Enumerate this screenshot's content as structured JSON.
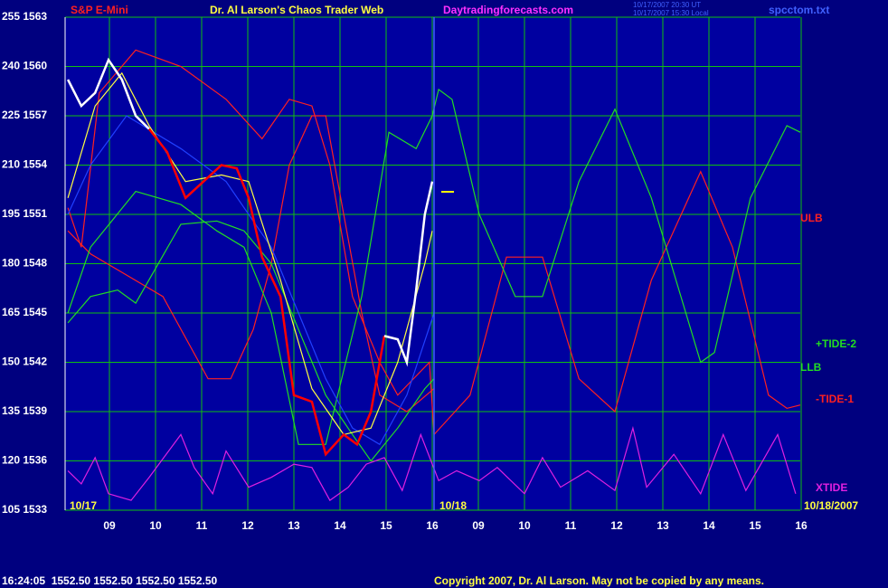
{
  "chart_data": {
    "type": "line",
    "header": {
      "instrument": "S&P E-Mini",
      "title": "Dr. Al Larson's Chaos Trader Web",
      "site": "Daytradingforecasts.com",
      "time_ut": "10/17/2007 20:30 UT",
      "time_local": "10/17/2007 15:30 Local",
      "file": "spcctom.txt"
    },
    "date_labels": {
      "start": "10/17",
      "next": "10/18",
      "end": "10/18/2007"
    },
    "footer": {
      "quote": "16:24:05  1552.50 1552.50 1552.50 1552.50",
      "copyright": "Copyright 2007, Dr. Al Larson. May not be copied by any means."
    },
    "grid": true,
    "xlim": [
      0,
      16
    ],
    "xticks": [
      {
        "value": 1,
        "label": "09"
      },
      {
        "value": 2,
        "label": "10"
      },
      {
        "value": 3,
        "label": "11"
      },
      {
        "value": 4,
        "label": "12"
      },
      {
        "value": 5,
        "label": "13"
      },
      {
        "value": 6,
        "label": "14"
      },
      {
        "value": 7,
        "label": "15"
      },
      {
        "value": 8,
        "label": "16"
      },
      {
        "value": 9,
        "label": "09"
      },
      {
        "value": 10,
        "label": "10"
      },
      {
        "value": 11,
        "label": "11"
      },
      {
        "value": 12,
        "label": "12"
      },
      {
        "value": 13,
        "label": "13"
      },
      {
        "value": 14,
        "label": "14"
      },
      {
        "value": 15,
        "label": "15"
      },
      {
        "value": 16,
        "label": "16"
      }
    ],
    "ylim": [
      105,
      255
    ],
    "yticks": [
      {
        "value": 255,
        "label": "255 1563"
      },
      {
        "value": 240,
        "label": "240 1560"
      },
      {
        "value": 225,
        "label": "225 1557"
      },
      {
        "value": 210,
        "label": "210 1554"
      },
      {
        "value": 195,
        "label": "195 1551"
      },
      {
        "value": 180,
        "label": "180 1548"
      },
      {
        "value": 165,
        "label": "165 1545"
      },
      {
        "value": 150,
        "label": "150 1542"
      },
      {
        "value": 135,
        "label": "135 1539"
      },
      {
        "value": 120,
        "label": "120 1536"
      },
      {
        "value": 105,
        "label": "105 1533"
      }
    ],
    "series": [
      {
        "color": "#ff2020",
        "x": [
          0.1,
          0.39,
          0.78,
          1.57,
          2.55,
          3.53,
          4.31,
          4.9,
          5.39,
          5.78,
          6.27,
          6.86,
          7.25,
          7.94,
          8.04
        ],
        "values": [
          197,
          185,
          232,
          245,
          240,
          230,
          218,
          230,
          228,
          210,
          170,
          150,
          140,
          150,
          128
        ]
      },
      {
        "name": "ULB",
        "color": "#ff2020",
        "x": [
          0.1,
          0.59,
          2.16,
          3.14,
          3.63,
          4.12,
          4.51,
          4.9,
          5.39,
          5.69,
          6.08,
          6.47,
          6.86,
          7.45,
          8.04
        ],
        "values": [
          190,
          183,
          170,
          145,
          145,
          160,
          180,
          210,
          225,
          225,
          195,
          165,
          140,
          135,
          142
        ]
      },
      {
        "name": "-TIDE-1",
        "color": "#ff2020",
        "x": [
          8.04,
          8.82,
          9.61,
          10.39,
          11.18,
          11.96,
          12.75,
          13.82,
          14.51,
          15.29,
          15.69,
          15.98
        ],
        "values": [
          128,
          140,
          182,
          182,
          145,
          135,
          175,
          208,
          185,
          140,
          136,
          137
        ]
      },
      {
        "name": "+TIDE-2",
        "color": "#22dd22",
        "x": [
          0.1,
          0.59,
          1.57,
          2.55,
          3.33,
          3.92,
          4.51,
          5.1,
          5.69,
          6.47,
          7.06,
          7.65,
          8.0,
          8.14,
          8.43,
          9.02,
          9.8,
          10.39,
          11.18,
          11.96,
          12.75,
          13.82,
          14.12,
          14.9,
          15.69,
          15.98
        ],
        "values": [
          165,
          185,
          202,
          198,
          190,
          185,
          165,
          125,
          125,
          170,
          220,
          215,
          225,
          233,
          230,
          195,
          170,
          170,
          205,
          227,
          200,
          150,
          153,
          200,
          222,
          220
        ]
      },
      {
        "name": "LLB",
        "color": "#22dd22",
        "x": [
          0.1,
          0.59,
          1.18,
          1.57,
          2.55,
          3.33,
          3.92,
          4.51,
          5.1,
          5.69,
          6.27,
          6.67,
          7.25,
          7.84,
          8.04
        ],
        "values": [
          162,
          170,
          172,
          168,
          192,
          193,
          190,
          180,
          160,
          140,
          128,
          120,
          130,
          142,
          145
        ]
      },
      {
        "color": "#2040ff",
        "x": [
          0.1,
          0.59,
          1.37,
          2.55,
          3.53,
          4.51,
          5.1,
          5.69,
          6.27,
          6.86,
          7.45,
          8.04
        ],
        "values": [
          195,
          210,
          225,
          215,
          205,
          185,
          165,
          145,
          130,
          125,
          140,
          165
        ]
      },
      {
        "name": "XTIDE",
        "color": "#e020e0",
        "x": [
          0.1,
          0.39,
          0.69,
          0.98,
          1.47,
          1.86,
          2.55,
          2.84,
          3.24,
          3.53,
          4.02,
          4.51,
          5.0,
          5.39,
          5.78,
          6.18,
          6.57,
          6.96,
          7.35,
          7.75,
          8.14,
          8.53,
          9.02,
          9.41,
          10.0,
          10.39,
          10.78,
          11.37,
          11.96,
          12.35,
          12.65,
          13.24,
          13.82,
          14.31,
          14.8,
          15.49,
          15.88
        ],
        "values": [
          117,
          113,
          121,
          110,
          108,
          115,
          128,
          118,
          110,
          123,
          112,
          115,
          119,
          118,
          108,
          112,
          119,
          121,
          111,
          128,
          114,
          117,
          114,
          118,
          110,
          121,
          112,
          117,
          111,
          130,
          112,
          122,
          110,
          128,
          111,
          128,
          110
        ]
      },
      {
        "color": "#ffff40",
        "x": [
          0.1,
          0.69,
          1.27,
          1.86,
          2.65,
          3.43,
          4.02,
          4.71,
          5.39,
          6.08,
          6.67,
          7.25,
          7.84,
          8.0
        ],
        "values": [
          200,
          228,
          238,
          222,
          205,
          207,
          205,
          175,
          142,
          128,
          130,
          150,
          180,
          190
        ]
      },
      {
        "color": "#ffffff",
        "x": [
          0.1,
          0.39,
          0.69,
          0.98,
          1.27,
          1.57,
          1.86
        ],
        "values": [
          236,
          228,
          232,
          242,
          236,
          225,
          221
        ]
      },
      {
        "color": "#ff0000",
        "x": [
          1.86,
          2.25,
          2.65,
          3.04,
          3.43,
          3.76,
          4.02,
          4.31,
          4.71,
          5.0,
          5.39,
          5.69,
          6.08,
          6.37,
          6.67,
          6.96
        ],
        "values": [
          221,
          214,
          200,
          205,
          210,
          209,
          200,
          182,
          170,
          140,
          138,
          122,
          128,
          125,
          135,
          158
        ]
      },
      {
        "color": "#ffffff",
        "x": [
          6.96,
          7.25,
          7.45,
          7.65,
          7.84,
          8.0
        ],
        "values": [
          158,
          157,
          150,
          172,
          195,
          205
        ]
      }
    ]
  }
}
